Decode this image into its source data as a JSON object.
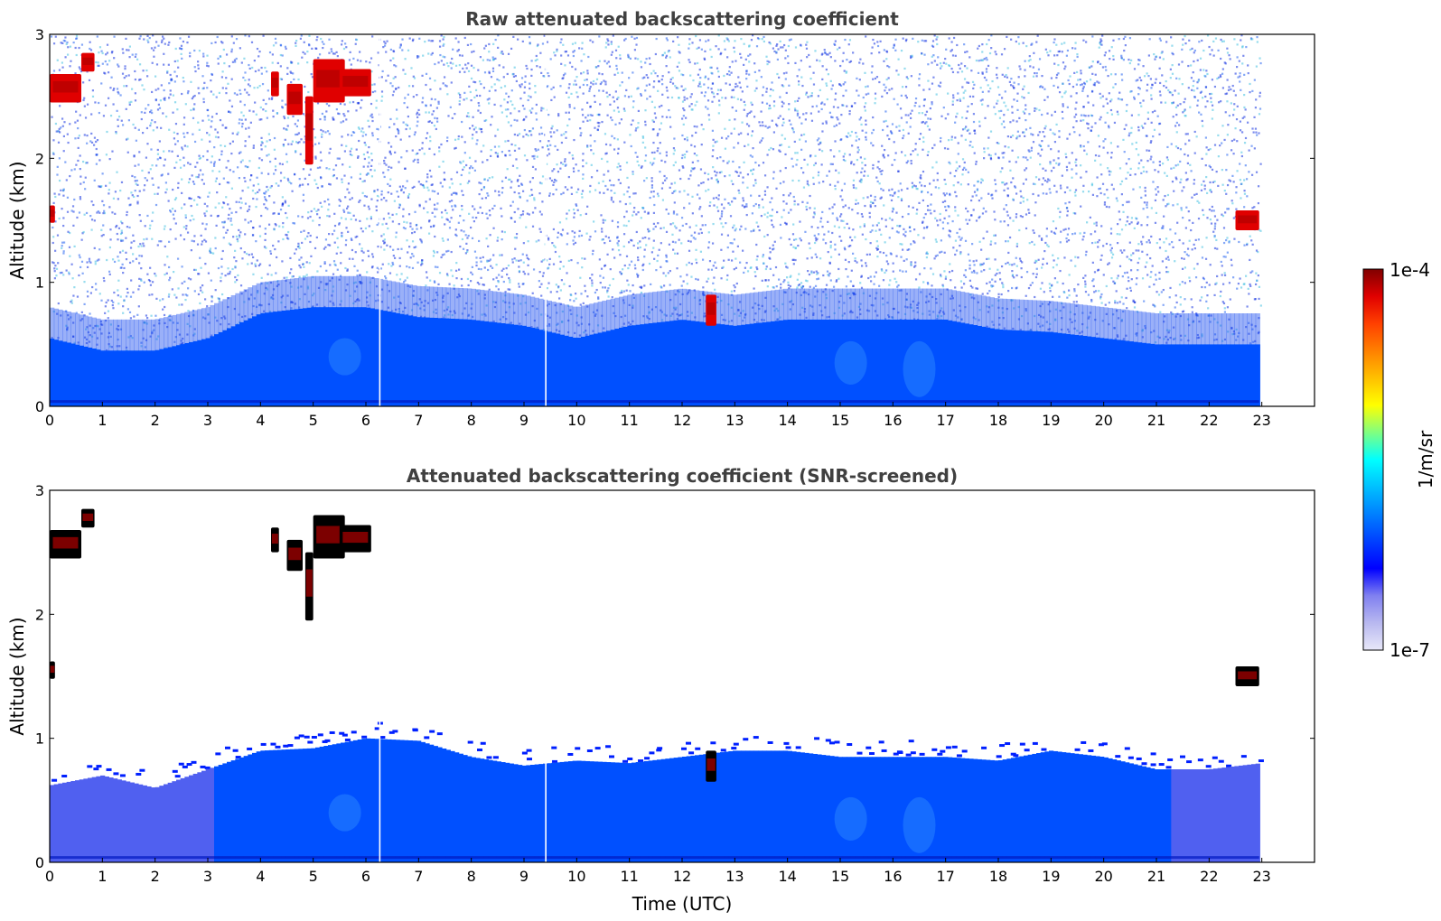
{
  "chart_data": [
    {
      "type": "heatmap",
      "title": "Raw attenuated backscattering coefficient",
      "xlabel": "",
      "ylabel": "Altitude (km)",
      "xlim": [
        0,
        24
      ],
      "ylim": [
        0,
        3
      ],
      "x_ticks": [
        "0",
        "1",
        "2",
        "3",
        "4",
        "5",
        "6",
        "7",
        "8",
        "9",
        "10",
        "11",
        "12",
        "13",
        "14",
        "15",
        "16",
        "17",
        "18",
        "19",
        "20",
        "21",
        "22",
        "23"
      ],
      "y_ticks": [
        "0",
        "1",
        "2",
        "3"
      ],
      "data_end_time": 22.95,
      "boundary_layer_top_km": [
        {
          "t": 0,
          "z": 0.55
        },
        {
          "t": 1,
          "z": 0.45
        },
        {
          "t": 2,
          "z": 0.45
        },
        {
          "t": 3,
          "z": 0.55
        },
        {
          "t": 4,
          "z": 0.75
        },
        {
          "t": 5,
          "z": 0.8
        },
        {
          "t": 6,
          "z": 0.8
        },
        {
          "t": 7,
          "z": 0.72
        },
        {
          "t": 8,
          "z": 0.7
        },
        {
          "t": 9,
          "z": 0.65
        },
        {
          "t": 10,
          "z": 0.55
        },
        {
          "t": 11,
          "z": 0.65
        },
        {
          "t": 12,
          "z": 0.7
        },
        {
          "t": 13,
          "z": 0.65
        },
        {
          "t": 14,
          "z": 0.7
        },
        {
          "t": 15,
          "z": 0.7
        },
        {
          "t": 16,
          "z": 0.7
        },
        {
          "t": 17,
          "z": 0.7
        },
        {
          "t": 18,
          "z": 0.62
        },
        {
          "t": 19,
          "z": 0.6
        },
        {
          "t": 20,
          "z": 0.55
        },
        {
          "t": 21,
          "z": 0.5
        },
        {
          "t": 22,
          "z": 0.5
        },
        {
          "t": 23,
          "z": 0.5
        }
      ],
      "clouds": [
        {
          "t0": 0.0,
          "t1": 0.6,
          "z0": 2.45,
          "z1": 2.68
        },
        {
          "t0": 0.6,
          "t1": 0.85,
          "z0": 2.7,
          "z1": 2.85
        },
        {
          "t0": 0.0,
          "t1": 0.1,
          "z0": 1.48,
          "z1": 1.62
        },
        {
          "t0": 4.2,
          "t1": 4.35,
          "z0": 2.5,
          "z1": 2.7
        },
        {
          "t0": 4.5,
          "t1": 4.8,
          "z0": 2.35,
          "z1": 2.6
        },
        {
          "t0": 4.85,
          "t1": 5.0,
          "z0": 1.95,
          "z1": 2.5
        },
        {
          "t0": 5.0,
          "t1": 5.6,
          "z0": 2.45,
          "z1": 2.8
        },
        {
          "t0": 5.5,
          "t1": 6.1,
          "z0": 2.5,
          "z1": 2.72
        },
        {
          "t0": 12.45,
          "t1": 12.65,
          "z0": 0.65,
          "z1": 0.9
        },
        {
          "t0": 22.5,
          "t1": 22.95,
          "z0": 1.42,
          "z1": 1.58
        }
      ],
      "data_gaps": [
        6.25,
        9.4
      ]
    },
    {
      "type": "heatmap",
      "title": "Attenuated backscattering coefficient (SNR-screened)",
      "xlabel": "Time (UTC)",
      "ylabel": "Altitude (km)",
      "xlim": [
        0,
        24
      ],
      "ylim": [
        0,
        3
      ],
      "x_ticks": [
        "0",
        "1",
        "2",
        "3",
        "4",
        "5",
        "6",
        "7",
        "8",
        "9",
        "10",
        "11",
        "12",
        "13",
        "14",
        "15",
        "16",
        "17",
        "18",
        "19",
        "20",
        "21",
        "22",
        "23"
      ],
      "y_ticks": [
        "0",
        "1",
        "2",
        "3"
      ],
      "data_end_time": 22.95,
      "boundary_layer_top_km": [
        {
          "t": 0,
          "z": 0.62
        },
        {
          "t": 1,
          "z": 0.7
        },
        {
          "t": 2,
          "z": 0.6
        },
        {
          "t": 3,
          "z": 0.75
        },
        {
          "t": 4,
          "z": 0.9
        },
        {
          "t": 5,
          "z": 0.92
        },
        {
          "t": 6,
          "z": 1.0
        },
        {
          "t": 7,
          "z": 0.98
        },
        {
          "t": 8,
          "z": 0.85
        },
        {
          "t": 9,
          "z": 0.78
        },
        {
          "t": 10,
          "z": 0.82
        },
        {
          "t": 11,
          "z": 0.8
        },
        {
          "t": 12,
          "z": 0.85
        },
        {
          "t": 13,
          "z": 0.9
        },
        {
          "t": 14,
          "z": 0.9
        },
        {
          "t": 15,
          "z": 0.85
        },
        {
          "t": 16,
          "z": 0.85
        },
        {
          "t": 17,
          "z": 0.85
        },
        {
          "t": 18,
          "z": 0.82
        },
        {
          "t": 19,
          "z": 0.9
        },
        {
          "t": 20,
          "z": 0.85
        },
        {
          "t": 21,
          "z": 0.75
        },
        {
          "t": 22,
          "z": 0.75
        },
        {
          "t": 23,
          "z": 0.8
        }
      ],
      "clouds": [
        {
          "t0": 0.0,
          "t1": 0.6,
          "z0": 2.45,
          "z1": 2.68
        },
        {
          "t0": 0.6,
          "t1": 0.85,
          "z0": 2.7,
          "z1": 2.85
        },
        {
          "t0": 0.0,
          "t1": 0.1,
          "z0": 1.48,
          "z1": 1.62
        },
        {
          "t0": 4.2,
          "t1": 4.35,
          "z0": 2.5,
          "z1": 2.7
        },
        {
          "t0": 4.5,
          "t1": 4.8,
          "z0": 2.35,
          "z1": 2.6
        },
        {
          "t0": 4.85,
          "t1": 5.0,
          "z0": 1.95,
          "z1": 2.5
        },
        {
          "t0": 5.0,
          "t1": 5.6,
          "z0": 2.45,
          "z1": 2.8
        },
        {
          "t0": 5.5,
          "t1": 6.1,
          "z0": 2.5,
          "z1": 2.72
        },
        {
          "t0": 12.45,
          "t1": 12.65,
          "z0": 0.65,
          "z1": 0.9
        },
        {
          "t0": 22.5,
          "t1": 22.95,
          "z0": 1.42,
          "z1": 1.58
        }
      ],
      "data_gaps": [
        6.25,
        9.4
      ]
    }
  ],
  "colorbar": {
    "max_label": "1e-4",
    "min_label": "1e-7",
    "unit_label": "1/m/sr",
    "colors": [
      "#e8e8f8",
      "#b8b8f0",
      "#8080f0",
      "#0000ff",
      "#0040ff",
      "#0080ff",
      "#00c0ff",
      "#00ffff",
      "#80ff80",
      "#ffff00",
      "#ffc000",
      "#ff8000",
      "#ff4000",
      "#e00000",
      "#800000"
    ]
  },
  "palette": {
    "cloud_dark": "#000000",
    "cloud_core": "#b00000",
    "bl_blue": "#0050ff",
    "noise_blue": "#1030e0",
    "noise_cyan": "#40c0e0"
  }
}
